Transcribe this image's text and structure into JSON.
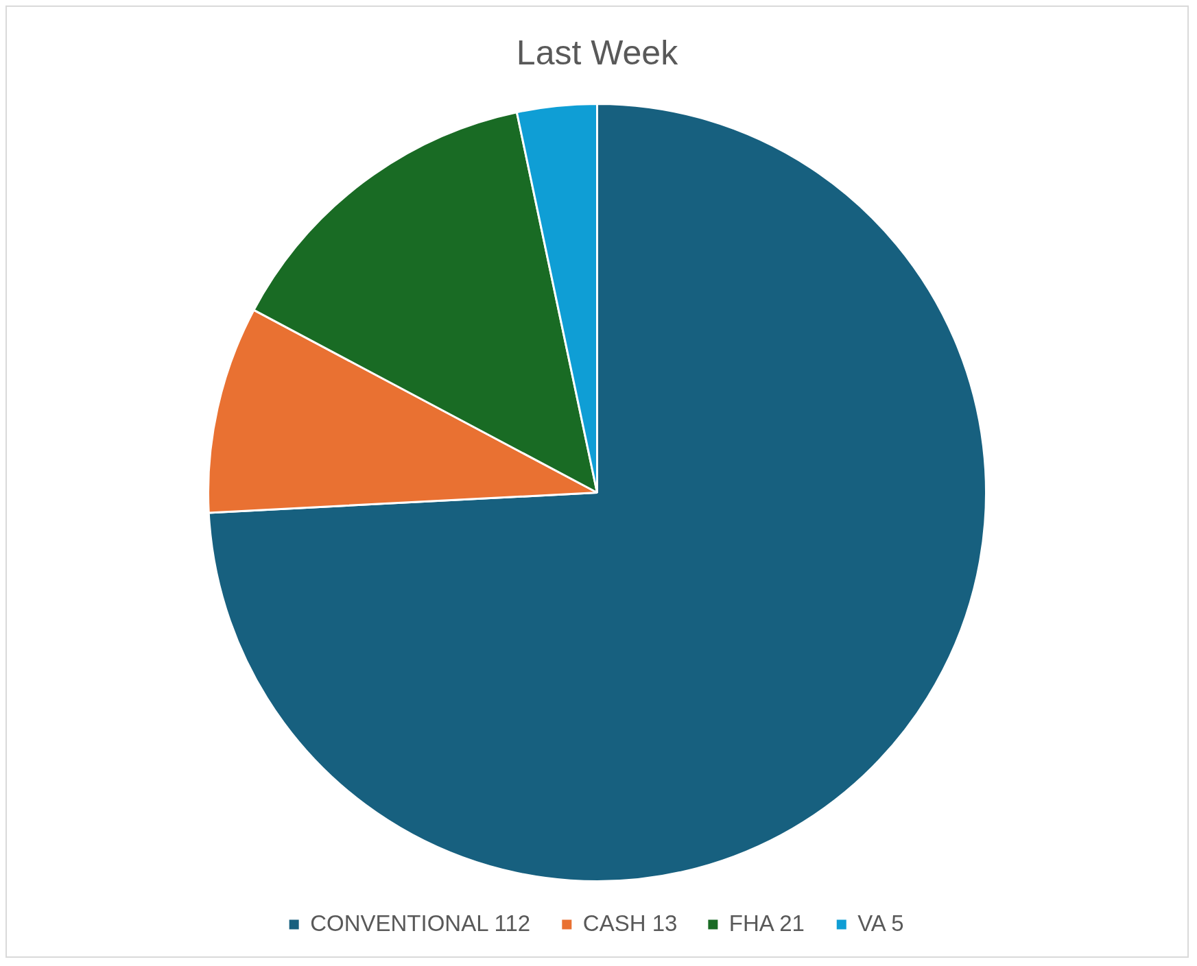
{
  "chart_data": {
    "type": "pie",
    "title": "Last Week",
    "categories": [
      "CONVENTIONAL 112",
      "CASH 13",
      "FHA 21",
      "VA 5"
    ],
    "values": [
      112,
      13,
      21,
      5
    ],
    "colors": [
      "#17607f",
      "#e97132",
      "#196b24",
      "#0f9ed5"
    ],
    "legend": "bottom"
  }
}
